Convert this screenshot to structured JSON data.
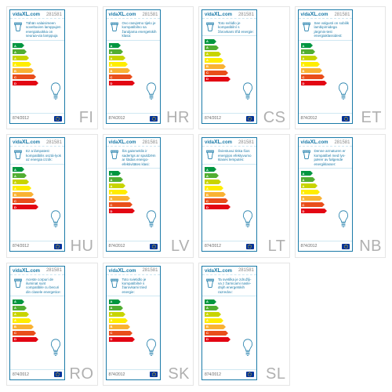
{
  "brand": "vidaXL.com",
  "product_id": "281581",
  "regulation": "874/2012",
  "arrow_colors": [
    "#009640",
    "#52ae32",
    "#c8d400",
    "#ffed00",
    "#f9b233",
    "#e94e1b",
    "#e30613"
  ],
  "arrow_letters": [
    "A",
    "A",
    "A",
    "A",
    "B",
    "C",
    "D"
  ],
  "arrow_widths": [
    12,
    15,
    18,
    21,
    24,
    27,
    30
  ],
  "card_border": "#1a7aa8",
  "text_color": "#1a7aa8",
  "cells": [
    {
      "code": "FI",
      "desc": "Tähän valaisimeen soveltuvien lamppujen energialuokka on seuraa-via lamppuja"
    },
    {
      "code": "HR",
      "desc": "Ovo rasvjetno tijelo je kompatibilno sa žaruljama energetskih klasa:"
    },
    {
      "code": "CS",
      "desc": "Toto svítidlo je kompatibilní s žárovkami tříd energie:"
    },
    {
      "code": "ET",
      "desc": "See valgusti on sobilik lambipirnidega järgmis-test energiaklassidest:"
    },
    {
      "code": "HU",
      "desc": "Ez a lámpatest kompatibilis osztá-lyok az energia izzók:"
    },
    {
      "code": "LV",
      "desc": "Šis gaismeklis ir saderīgs ar spuldzēm ar šādas energo-efektivitātes klasi:"
    },
    {
      "code": "LT",
      "desc": "Šviestuvui tinka šios energijos efektyvumo klasės lemputės:"
    },
    {
      "code": "NB",
      "desc": "Denne armaturen er kompatibel med lys-pærer av følgende energiklasser:"
    },
    {
      "code": "RO",
      "desc": "Aceste corpuri de iluminat sunt compatibile cu becuri din clasele energetice:"
    },
    {
      "code": "SK",
      "desc": "Toto svietidlo je kompatibilné s žiarovkami tried energie:"
    },
    {
      "code": "SL",
      "desc": "Ta svetilka je združlji-va z žarnicami nasle-dnjih energetskih razredov:"
    }
  ]
}
